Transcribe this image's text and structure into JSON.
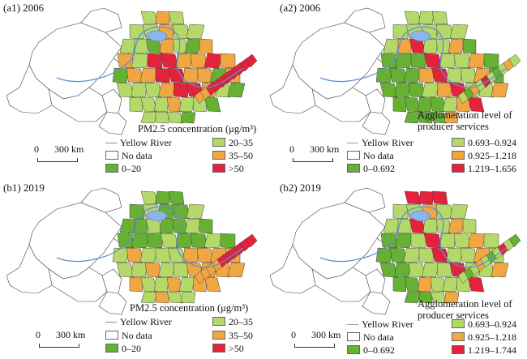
{
  "colors": {
    "low": "#66b032",
    "mid": "#b5d968",
    "high": "#f0a742",
    "top": "#e3223c",
    "nodata": "#ffffff",
    "border": "#444444",
    "river": "#5b8fd6",
    "lake": "#8fb4e8"
  },
  "scale_label": "300 km",
  "panels": [
    {
      "id": "a1",
      "title": "(a1) 2006",
      "legend_title": "PM₂.₅ concentration (μg/m³)",
      "legend_title_lines": [
        "PM2.5 concentration (μg/m³)"
      ],
      "river_label": "Yellow River",
      "nodata_label": "No data",
      "classes": [
        "0–20",
        "20–35",
        "35–50",
        ">50"
      ],
      "pattern": "pm2006"
    },
    {
      "id": "a2",
      "title": "(a2) 2006",
      "legend_title_lines": [
        "Agglomeration level of",
        "producer services"
      ],
      "river_label": "Yellow River",
      "nodata_label": "No data",
      "classes": [
        "0–0.692",
        "0.693–0.924",
        "0.925–1.218",
        "1.219–1.656"
      ],
      "pattern": "ag2006"
    },
    {
      "id": "b1",
      "title": "(b1) 2019",
      "legend_title_lines": [
        "PM2.5 concentration (μg/m³)"
      ],
      "river_label": "Yellow River",
      "nodata_label": "No data",
      "classes": [
        "0–20",
        "20–35",
        "35–50",
        ">50"
      ],
      "pattern": "pm2019"
    },
    {
      "id": "b2",
      "title": "(b2) 2019",
      "legend_title_lines": [
        "Agglomeration level of",
        "producer services"
      ],
      "river_label": "Yellow River",
      "nodata_label": "No data",
      "classes": [
        "0–0.692",
        "0.693–0.924",
        "0.925–1.218",
        "1.219–1.744"
      ],
      "pattern": "ag2019"
    }
  ]
}
